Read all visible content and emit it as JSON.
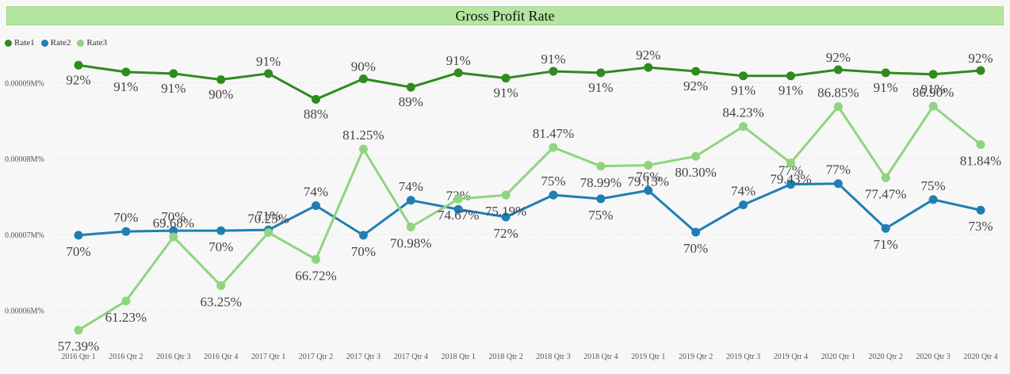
{
  "chart_data": {
    "type": "line",
    "title": "Gross Profit Rate",
    "legend_position": "top-left",
    "grid": true,
    "categories": [
      "2016 Qtr 1",
      "2016 Qtr 2",
      "2016 Qtr 3",
      "2016 Qtr 4",
      "2017 Qtr 1",
      "2017 Qtr 2",
      "2017 Qtr 3",
      "2017 Qtr 4",
      "2018 Qtr 1",
      "2018 Qtr 2",
      "2018 Qtr 3",
      "2018 Qtr 4",
      "2019 Qtr 1",
      "2019 Qtr 2",
      "2019 Qtr 3",
      "2019 Qtr 4",
      "2020 Qtr 1",
      "2020 Qtr 2",
      "2020 Qtr 3",
      "2020 Qtr 4"
    ],
    "y_ticks": [
      {
        "value": 0.9,
        "label": "0.00009M%"
      },
      {
        "value": 0.8,
        "label": "0.00008M%"
      },
      {
        "value": 0.7,
        "label": "0.00007M%"
      },
      {
        "value": 0.6,
        "label": "0.00006M%"
      }
    ],
    "ylim": [
      0.56,
      0.94
    ],
    "series": [
      {
        "name": "Rate1",
        "color": "#2e8b1e",
        "values": [
          0.923,
          0.914,
          0.912,
          0.904,
          0.912,
          0.878,
          0.905,
          0.894,
          0.913,
          0.906,
          0.915,
          0.913,
          0.92,
          0.915,
          0.909,
          0.909,
          0.917,
          0.913,
          0.911,
          0.916
        ],
        "labels": [
          "92%",
          "91%",
          "91%",
          "90%",
          "91%",
          "88%",
          "90%",
          "89%",
          "91%",
          "91%",
          "91%",
          "91%",
          "92%",
          "92%",
          "91%",
          "91%",
          "92%",
          "91%",
          "91%",
          "92%"
        ]
      },
      {
        "name": "Rate2",
        "color": "#1f7fb4",
        "values": [
          0.699,
          0.704,
          0.705,
          0.705,
          0.706,
          0.738,
          0.699,
          0.745,
          0.733,
          0.723,
          0.752,
          0.747,
          0.758,
          0.703,
          0.739,
          0.766,
          0.767,
          0.708,
          0.746,
          0.732
        ],
        "labels": [
          "70%",
          "70%",
          "70%",
          "70%",
          "71%",
          "74%",
          "70%",
          "74%",
          "73%",
          "72%",
          "75%",
          "75%",
          "76%",
          "70%",
          "74%",
          "77%",
          "77%",
          "71%",
          "75%",
          "73%"
        ]
      },
      {
        "name": "Rate3",
        "color": "#8fd47f",
        "values": [
          0.5739,
          0.6123,
          0.6968,
          0.6325,
          0.7025,
          0.6672,
          0.8125,
          0.7098,
          0.7467,
          0.7519,
          0.8147,
          0.7899,
          0.7913,
          0.803,
          0.8423,
          0.7943,
          0.8685,
          0.7747,
          0.869,
          0.8184
        ],
        "labels": [
          "57.39%",
          "61.23%",
          "69.68%",
          "63.25%",
          "70.25%",
          "66.72%",
          "81.25%",
          "70.98%",
          "74.67%",
          "75.19%",
          "81.47%",
          "78.99%",
          "79.13%",
          "80.30%",
          "84.23%",
          "79.43%",
          "86.85%",
          "77.47%",
          "86.90%",
          "81.84%"
        ]
      }
    ]
  }
}
